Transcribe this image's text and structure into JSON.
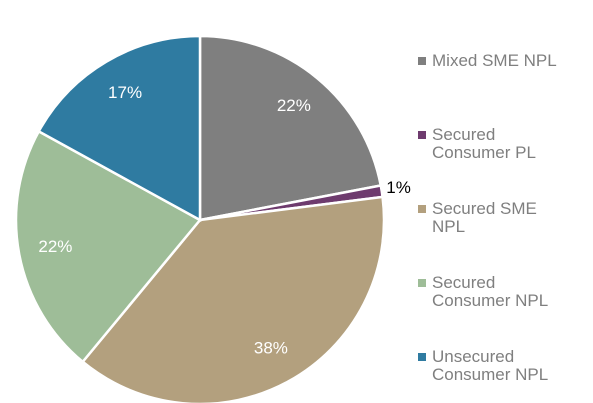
{
  "chart_data": {
    "type": "pie",
    "categories": [
      "Mixed SME NPL",
      "Secured Consumer PL",
      "Secured SME NPL",
      "Secured Consumer NPL",
      "Unsecured Consumer NPL"
    ],
    "values": [
      22,
      1,
      38,
      22,
      17
    ],
    "value_labels": [
      "22%",
      "1%",
      "38%",
      "22%",
      "17%"
    ],
    "colors": [
      "#7f7f7f",
      "#6e3b6e",
      "#b3a07e",
      "#9ebd98",
      "#2f7ba1"
    ],
    "legend": "right"
  }
}
